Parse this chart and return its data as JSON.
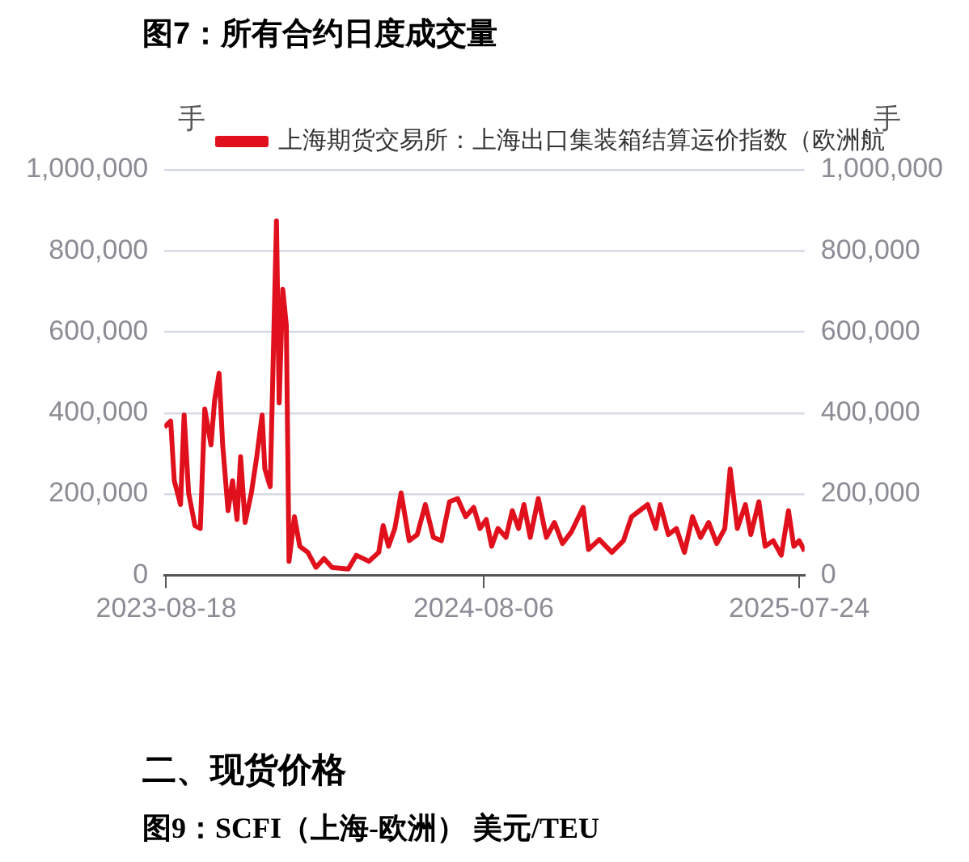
{
  "chart_data": {
    "type": "line",
    "title": "图7：所有合约日度成交量",
    "ylabel": "手",
    "y2label": "手",
    "x": [
      "2023-08-16",
      "2023-08-23",
      "2023-08-27",
      "2023-09-03",
      "2023-09-07",
      "2023-09-12",
      "2023-09-19",
      "2023-09-25",
      "2023-09-30",
      "2023-10-07",
      "2023-10-11",
      "2023-10-16",
      "2023-10-20",
      "2023-10-26",
      "2023-10-31",
      "2023-11-05",
      "2023-11-09",
      "2023-11-14",
      "2023-11-21",
      "2023-11-27",
      "2023-12-03",
      "2023-12-06",
      "2023-12-12",
      "2023-12-19",
      "2023-12-22",
      "2023-12-26",
      "2023-12-30",
      "2024-01-02",
      "2024-01-08",
      "2024-01-14",
      "2024-01-23",
      "2024-02-01",
      "2024-02-10",
      "2024-02-19",
      "2024-03-08",
      "2024-03-17",
      "2024-03-31",
      "2024-04-11",
      "2024-04-16",
      "2024-04-22",
      "2024-04-29",
      "2024-05-06",
      "2024-05-15",
      "2024-05-24",
      "2024-06-02",
      "2024-06-11",
      "2024-06-20",
      "2024-06-29",
      "2024-07-08",
      "2024-07-17",
      "2024-07-26",
      "2024-08-02",
      "2024-08-09",
      "2024-08-15",
      "2024-08-22",
      "2024-08-31",
      "2024-09-07",
      "2024-09-14",
      "2024-09-20",
      "2024-09-27",
      "2024-10-06",
      "2024-10-15",
      "2024-10-24",
      "2024-11-02",
      "2024-11-12",
      "2024-11-25",
      "2024-12-01",
      "2024-12-13",
      "2024-12-27",
      "2025-01-09",
      "2025-01-18",
      "2025-01-27",
      "2025-02-05",
      "2025-02-14",
      "2025-02-19",
      "2025-02-28",
      "2025-03-09",
      "2025-03-18",
      "2025-03-27",
      "2025-04-05",
      "2025-04-14",
      "2025-04-23",
      "2025-05-02",
      "2025-05-08",
      "2025-05-16",
      "2025-05-25",
      "2025-05-31",
      "2025-06-09",
      "2025-06-16",
      "2025-06-25",
      "2025-07-04",
      "2025-07-12",
      "2025-07-18",
      "2025-07-24",
      "2025-07-30"
    ],
    "series": [
      {
        "name": "上海期货交易所：上海出口集装箱结算运价指数（欧洲航",
        "color": "#e0101c",
        "values": [
          365000,
          380000,
          233000,
          174000,
          395000,
          203000,
          122000,
          115000,
          410000,
          321000,
          432000,
          498000,
          321000,
          159000,
          233000,
          137000,
          292000,
          130000,
          203000,
          292000,
          395000,
          262000,
          218000,
          874000,
          425000,
          705000,
          616000,
          34000,
          144000,
          71000,
          56000,
          19000,
          41000,
          19000,
          15000,
          49000,
          34000,
          56000,
          122000,
          71000,
          115000,
          203000,
          85000,
          100000,
          174000,
          93000,
          85000,
          181000,
          189000,
          144000,
          167000,
          115000,
          137000,
          71000,
          115000,
          93000,
          159000,
          115000,
          174000,
          93000,
          189000,
          93000,
          130000,
          78000,
          107000,
          167000,
          63000,
          88000,
          56000,
          85000,
          144000,
          159000,
          174000,
          115000,
          174000,
          100000,
          115000,
          56000,
          144000,
          93000,
          130000,
          78000,
          115000,
          262000,
          115000,
          174000,
          100000,
          181000,
          71000,
          85000,
          49000,
          159000,
          71000,
          85000,
          59000
        ]
      }
    ],
    "xlim": [
      "2023-08-16",
      "2025-07-30"
    ],
    "xticks": [
      "2023-08-18",
      "2024-08-06",
      "2025-07-24"
    ],
    "ylim": [
      0,
      1000000
    ],
    "yticks": [
      {
        "value": 0,
        "label": "0"
      },
      {
        "value": 200000,
        "label": "200,000"
      },
      {
        "value": 400000,
        "label": "400,000"
      },
      {
        "value": 600000,
        "label": "600,000"
      },
      {
        "value": 800000,
        "label": "800,000"
      },
      {
        "value": 1000000,
        "label": "1,000,000"
      }
    ],
    "y2lim": [
      0,
      1000000
    ],
    "y2ticks": [
      {
        "value": 0,
        "label": "0"
      },
      {
        "value": 200000,
        "label": "200,000"
      },
      {
        "value": 400000,
        "label": "400,000"
      },
      {
        "value": 600000,
        "label": "600,000"
      },
      {
        "value": 800000,
        "label": "800,000"
      },
      {
        "value": 1000000,
        "label": "1,000,000"
      }
    ],
    "grid": "y",
    "legend": "top",
    "marker": "none",
    "line_style": "solid",
    "annotations": [
      "二、现货价格",
      "图9：SCFI（上海-欧洲） 美元/TEU"
    ]
  }
}
